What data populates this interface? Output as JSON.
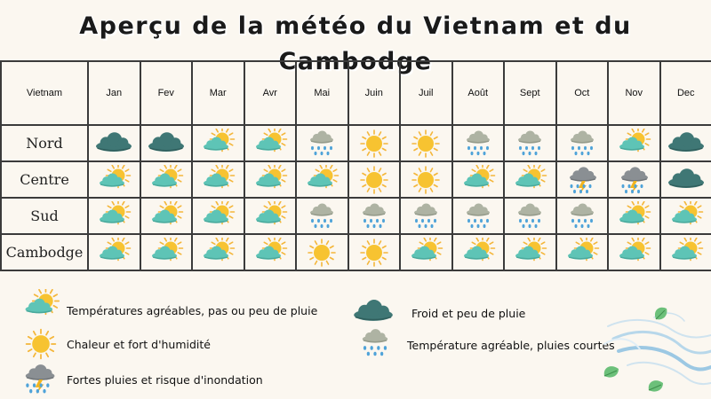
{
  "title": "Aperçu de la météo du Vietnam et du Cambodge",
  "table": {
    "corner_label": "Vietnam",
    "months": [
      "Jan",
      "Fev",
      "Mar",
      "Avr",
      "Mai",
      "Juin",
      "Juil",
      "Août",
      "Sept",
      "Oct",
      "Nov",
      "Dec"
    ],
    "rows": [
      {
        "label": "Nord",
        "cells": [
          "cold-cloud-icon",
          "cold-cloud-icon",
          "sun-cloud-icon",
          "sun-cloud-icon",
          "rain-cloud-icon",
          "sun-icon",
          "sun-icon",
          "rain-cloud-icon",
          "rain-cloud-icon",
          "rain-cloud-icon",
          "sun-cloud-icon",
          "cold-cloud-icon"
        ]
      },
      {
        "label": "Centre",
        "cells": [
          "sun-cloud-icon",
          "sun-cloud-icon",
          "sun-cloud-icon",
          "sun-cloud-icon",
          "sun-cloud-icon",
          "sun-icon",
          "sun-icon",
          "sun-cloud-icon",
          "sun-cloud-icon",
          "storm-cloud-icon",
          "storm-cloud-icon",
          "cold-cloud-icon"
        ]
      },
      {
        "label": "Sud",
        "cells": [
          "sun-cloud-icon",
          "sun-cloud-icon",
          "sun-cloud-icon",
          "sun-cloud-icon",
          "rain-cloud-icon",
          "rain-cloud-icon",
          "rain-cloud-icon",
          "rain-cloud-icon",
          "rain-cloud-icon",
          "rain-cloud-icon",
          "sun-cloud-icon",
          "sun-cloud-icon"
        ]
      },
      {
        "label": "Cambodge",
        "cells": [
          "sun-cloud-icon",
          "sun-cloud-icon",
          "sun-cloud-icon",
          "sun-cloud-icon",
          "sun-icon",
          "sun-icon",
          "sun-cloud-icon",
          "sun-cloud-icon",
          "sun-cloud-icon",
          "sun-cloud-icon",
          "sun-cloud-icon",
          "sun-cloud-icon"
        ]
      }
    ]
  },
  "legend": {
    "pleasant": {
      "icon": "sun-cloud-icon",
      "label": "Températures agréables, pas ou peu de pluie"
    },
    "hot": {
      "icon": "sun-icon",
      "label": "Chaleur et fort d'humidité"
    },
    "storm": {
      "icon": "storm-cloud-icon",
      "label": "Fortes pluies et risque d'inondation"
    },
    "cold": {
      "icon": "cold-cloud-icon",
      "label": "Froid et peu de pluie"
    },
    "showers": {
      "icon": "rain-cloud-icon",
      "label": "Température agréable, pluies courtes"
    }
  },
  "colors": {
    "sun": "#f7c331",
    "sun_rays": "#f4b63a",
    "teal_cloud": "#5ec4b6",
    "dark_cloud": "#3f7775",
    "grey_cloud": "#aeb3a3",
    "storm_cloud": "#8a8f93",
    "rain": "#4fa3d9",
    "bolt": "#f2b51e",
    "border": "#3b3b3b"
  }
}
